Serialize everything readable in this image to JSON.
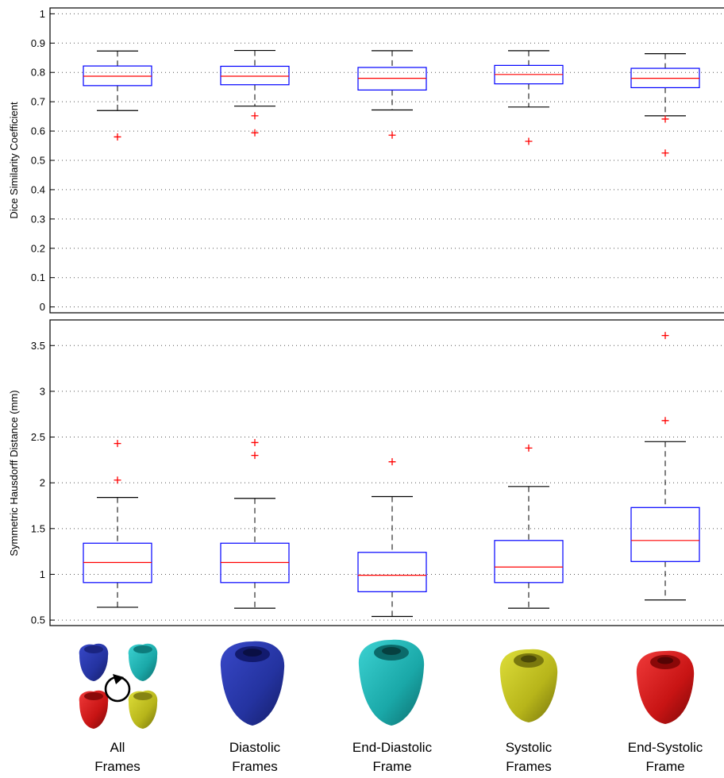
{
  "chart_data": [
    {
      "type": "box",
      "ylabel": "Dice Similarity Coefficient",
      "ylim": [
        -0.02,
        1.02
      ],
      "yticks": [
        0,
        0.1,
        0.2,
        0.3,
        0.4,
        0.5,
        0.6,
        0.7,
        0.8,
        0.9,
        1
      ],
      "grid": "horizontal dotted",
      "series": [
        {
          "whisker_low": 0.67,
          "q1": 0.755,
          "median": 0.787,
          "q3": 0.822,
          "whisker_high": 0.873,
          "outliers": [
            0.58
          ]
        },
        {
          "whisker_low": 0.685,
          "q1": 0.758,
          "median": 0.787,
          "q3": 0.821,
          "whisker_high": 0.875,
          "outliers": [
            0.652,
            0.594
          ]
        },
        {
          "whisker_low": 0.672,
          "q1": 0.74,
          "median": 0.78,
          "q3": 0.817,
          "whisker_high": 0.874,
          "outliers": [
            0.586
          ]
        },
        {
          "whisker_low": 0.682,
          "q1": 0.761,
          "median": 0.793,
          "q3": 0.824,
          "whisker_high": 0.874,
          "outliers": [
            0.565
          ]
        },
        {
          "whisker_low": 0.652,
          "q1": 0.748,
          "median": 0.78,
          "q3": 0.814,
          "whisker_high": 0.864,
          "outliers": [
            0.641,
            0.525
          ]
        }
      ]
    },
    {
      "type": "box",
      "ylabel": "Symmetric Hausdorff Distance (mm)",
      "ylim": [
        0.44,
        3.78
      ],
      "yticks": [
        0.5,
        1,
        1.5,
        2,
        2.5,
        3,
        3.5
      ],
      "grid": "horizontal dotted",
      "series": [
        {
          "whisker_low": 0.64,
          "q1": 0.91,
          "median": 1.13,
          "q3": 1.34,
          "whisker_high": 1.84,
          "outliers": [
            2.43,
            2.03
          ]
        },
        {
          "whisker_low": 0.63,
          "q1": 0.91,
          "median": 1.13,
          "q3": 1.34,
          "whisker_high": 1.83,
          "outliers": [
            2.44,
            2.3
          ]
        },
        {
          "whisker_low": 0.54,
          "q1": 0.81,
          "median": 0.99,
          "q3": 1.24,
          "whisker_high": 1.85,
          "outliers": [
            2.23
          ]
        },
        {
          "whisker_low": 0.63,
          "q1": 0.91,
          "median": 1.08,
          "q3": 1.37,
          "whisker_high": 1.96,
          "outliers": [
            2.38
          ]
        },
        {
          "whisker_low": 0.72,
          "q1": 1.14,
          "median": 1.37,
          "q3": 1.73,
          "whisker_high": 2.45,
          "outliers": [
            3.61,
            2.68
          ]
        }
      ]
    }
  ],
  "categories": [
    {
      "line1": "All",
      "line2": "Frames"
    },
    {
      "line1": "Diastolic",
      "line2": "Frames"
    },
    {
      "line1": "End-Diastolic",
      "line2": "Frame"
    },
    {
      "line1": "Systolic",
      "line2": "Frames"
    },
    {
      "line1": "End-Systolic",
      "line2": "Frame"
    }
  ],
  "colors": {
    "box": "#0000ff",
    "median": "#ff0000",
    "outlier": "#ff0000",
    "whisker": "#000000",
    "grid": "#555555",
    "heart_blue": "#2b3aa8",
    "heart_cyan": "#1fb3b3",
    "heart_yellow": "#c4c21e",
    "heart_red": "#d01818"
  },
  "icons": [
    "heart-blue-icon",
    "heart-cyan-icon",
    "heart-red-icon",
    "heart-yellow-icon",
    "cycle-arrow-icon"
  ]
}
